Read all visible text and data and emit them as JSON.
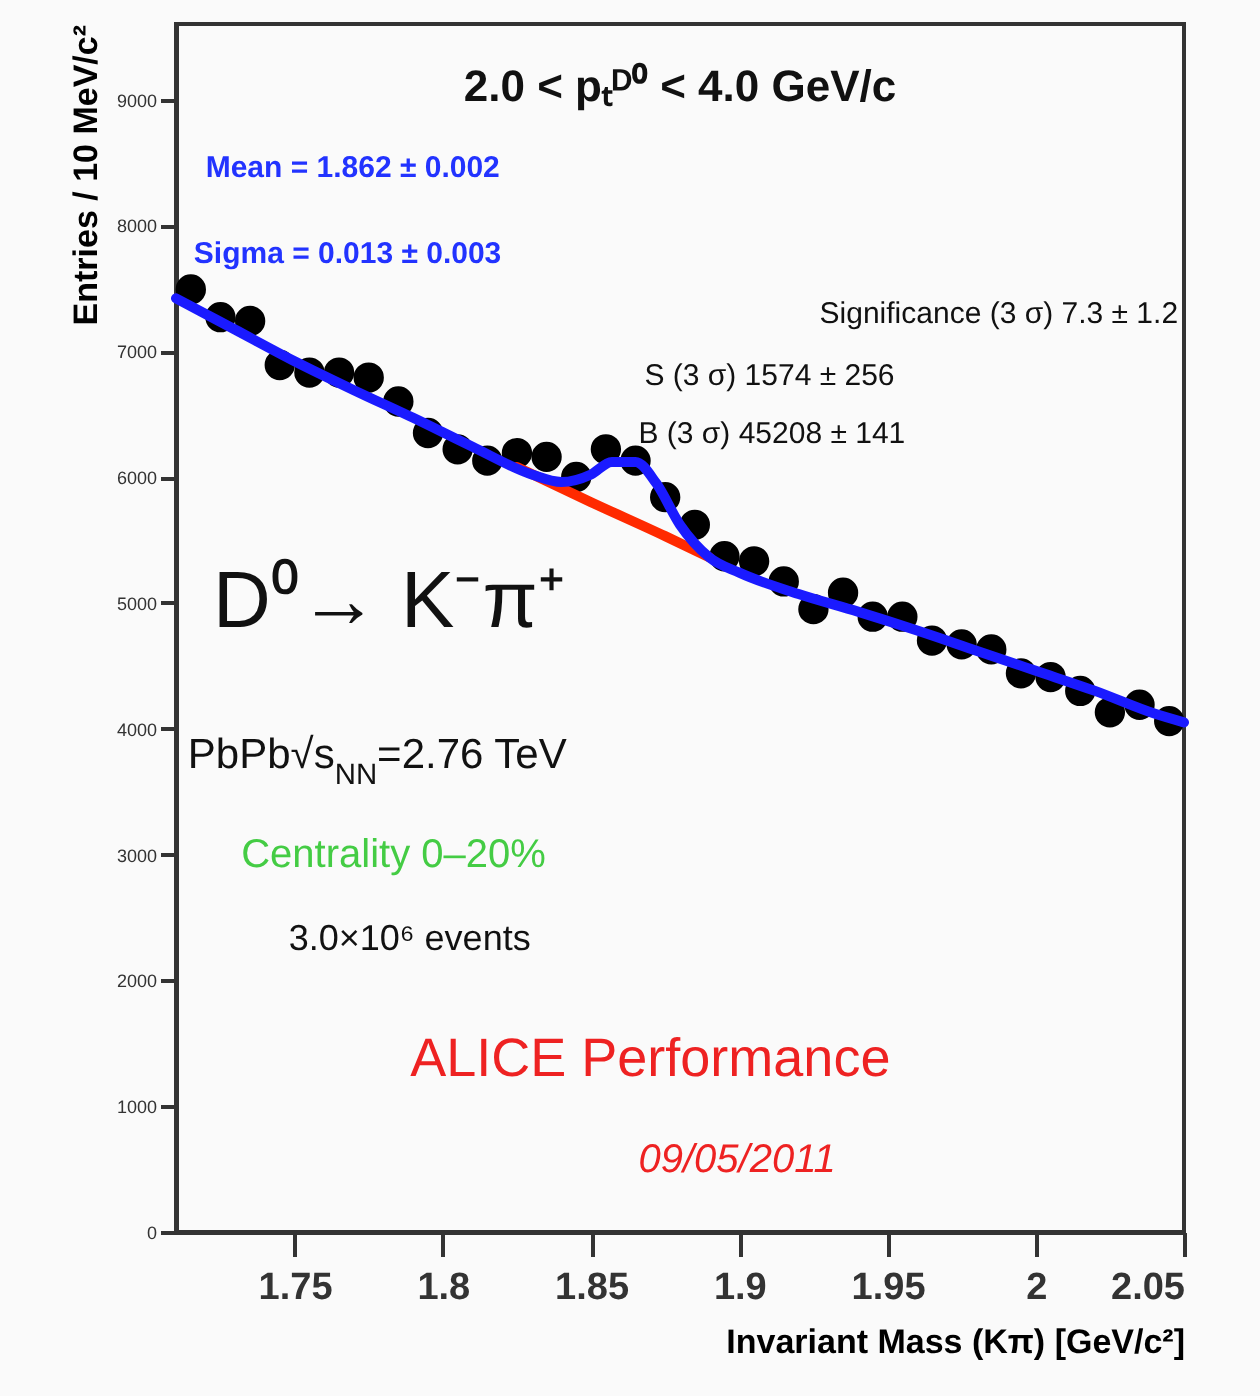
{
  "chart_data": {
    "type": "scatter",
    "xlabel": "Invariant Mass (Kπ) [GeV/c²]",
    "ylabel": "Entries / 10 MeV/c²",
    "xlim": [
      1.71,
      2.05
    ],
    "ylim": [
      0,
      9600
    ],
    "xticks": [
      1.75,
      1.8,
      1.85,
      1.9,
      1.95,
      2,
      2.05
    ],
    "yticks": [
      0,
      1000,
      2000,
      3000,
      4000,
      5000,
      6000,
      7000,
      8000,
      9000
    ],
    "grid": false,
    "annotations": [
      "2.0 < pₜᴰ⁰ < 4.0 GeV/c",
      "Mean = 1.862 ± 0.002",
      "Sigma = 0.013 ± 0.003",
      "Significance (3 σ) 7.3 ± 1.2",
      "S (3 σ) 1574 ± 256",
      "B (3 σ) 45208 ± 141",
      "D⁰→ K⁻π⁺",
      "PbPb√s$_{NN}$=2.76 TeV",
      "Centrality 0–20%",
      "3.0×10⁶ events",
      "ALICE Performance",
      "09/05/2011"
    ],
    "series": [
      {
        "color": "#000000",
        "marker": "circle",
        "x": [
          1.715,
          1.725,
          1.735,
          1.745,
          1.755,
          1.765,
          1.775,
          1.785,
          1.795,
          1.805,
          1.815,
          1.825,
          1.835,
          1.845,
          1.855,
          1.865,
          1.875,
          1.885,
          1.895,
          1.905,
          1.915,
          1.925,
          1.935,
          1.945,
          1.955,
          1.965,
          1.975,
          1.985,
          1.995,
          2.005,
          2.015,
          2.025,
          2.035,
          2.045
        ],
        "values": [
          7490,
          7270,
          7240,
          6890,
          6830,
          6830,
          6790,
          6600,
          6350,
          6220,
          6130,
          6190,
          6160,
          6000,
          6220,
          6130,
          5840,
          5620,
          5370,
          5330,
          5170,
          4950,
          5080,
          4890,
          4890,
          4700,
          4670,
          4630,
          4440,
          4410,
          4300,
          4130,
          4190,
          4060
        ]
      },
      {
        "type": "line",
        "color": "#ff2a00",
        "marker": "none",
        "x": [
          1.825,
          1.85,
          1.875,
          1.89
        ],
        "values": [
          6080,
          5800,
          5530,
          5360
        ]
      },
      {
        "type": "line",
        "color": "#1a1aff",
        "marker": "none",
        "x": [
          1.71,
          1.73,
          1.75,
          1.77,
          1.79,
          1.81,
          1.83,
          1.84,
          1.85,
          1.857,
          1.865,
          1.872,
          1.88,
          1.89,
          1.9,
          1.92,
          1.94,
          1.96,
          1.98,
          2.0,
          2.02,
          2.04,
          2.05
        ],
        "values": [
          7420,
          7170,
          6920,
          6690,
          6470,
          6240,
          6020,
          5960,
          6020,
          6120,
          6120,
          5950,
          5620,
          5360,
          5240,
          5070,
          4930,
          4780,
          4620,
          4460,
          4300,
          4120,
          4050
        ]
      }
    ]
  }
}
